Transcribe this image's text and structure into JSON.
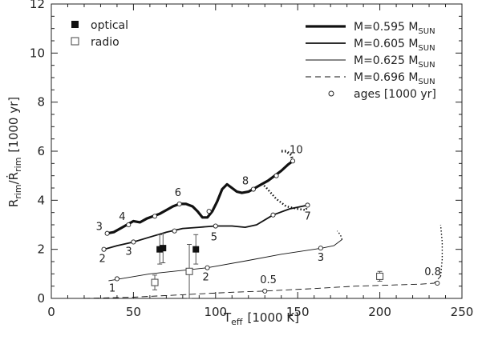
{
  "chart_data": {
    "type": "line",
    "title": "",
    "xlabel": {
      "main": "T",
      "sub": "eff",
      "unit": "[1000 K]"
    },
    "ylabel": {
      "main": "R",
      "sub": "rim",
      "sep": "/",
      "main2": "Ṙ",
      "sub2": "rim",
      "unit": "[1000 yr]"
    },
    "xlim": [
      0,
      250
    ],
    "ylim": [
      0,
      12
    ],
    "xticks": [
      0,
      50,
      100,
      150,
      200,
      250
    ],
    "yticks": [
      0,
      2,
      4,
      6,
      8,
      10,
      12
    ],
    "grid": false,
    "legend_left": [
      {
        "label": "optical",
        "marker": "filled-square"
      },
      {
        "label": "radio",
        "marker": "open-square"
      }
    ],
    "legend_right": [
      {
        "label": "M=0.595 M",
        "sub": "SUN",
        "style": "thick"
      },
      {
        "label": "M=0.605 M",
        "sub": "SUN",
        "style": "medium"
      },
      {
        "label": "M=0.625 M",
        "sub": "SUN",
        "style": "thin"
      },
      {
        "label": "M=0.696 M",
        "sub": "SUN",
        "style": "dashed"
      },
      {
        "label": "ages [1000 yr]",
        "style": "circle"
      }
    ],
    "series": [
      {
        "name": "M=0.595 M_SUN",
        "style": "thick",
        "points": [
          [
            34,
            2.65
          ],
          [
            38,
            2.7
          ],
          [
            42,
            2.85
          ],
          [
            46,
            3.0
          ],
          [
            50,
            3.15
          ],
          [
            54,
            3.1
          ],
          [
            58,
            3.25
          ],
          [
            62,
            3.35
          ],
          [
            66,
            3.45
          ],
          [
            70,
            3.6
          ],
          [
            74,
            3.75
          ],
          [
            78,
            3.85
          ],
          [
            82,
            3.85
          ],
          [
            86,
            3.75
          ],
          [
            89,
            3.55
          ],
          [
            92,
            3.3
          ],
          [
            95,
            3.3
          ],
          [
            98,
            3.55
          ],
          [
            101,
            3.95
          ],
          [
            104,
            4.45
          ],
          [
            107,
            4.65
          ],
          [
            110,
            4.5
          ],
          [
            113,
            4.35
          ],
          [
            116,
            4.3
          ],
          [
            120,
            4.35
          ],
          [
            124,
            4.5
          ],
          [
            128,
            4.65
          ],
          [
            132,
            4.8
          ],
          [
            136,
            5.0
          ],
          [
            140,
            5.2
          ],
          [
            144,
            5.45
          ],
          [
            147,
            5.6
          ]
        ],
        "dotted_tail": [
          [
            147,
            5.6
          ],
          [
            146,
            5.85
          ],
          [
            143,
            6.0
          ],
          [
            140,
            6.0
          ]
        ],
        "ages": [
          {
            "x": 34,
            "y": 2.65,
            "label": "3"
          },
          {
            "x": 47,
            "y": 3.0,
            "label": "4"
          },
          {
            "x": 63,
            "y": 3.35,
            "label": ""
          },
          {
            "x": 78,
            "y": 3.85,
            "label": "6"
          },
          {
            "x": 96,
            "y": 3.55,
            "label": ""
          },
          {
            "x": 123,
            "y": 4.45,
            "label": "8"
          },
          {
            "x": 137,
            "y": 5.0,
            "label": ""
          },
          {
            "x": 147,
            "y": 5.6,
            "label": "10"
          }
        ]
      },
      {
        "name": "M=0.605 M_SUN",
        "style": "medium",
        "points": [
          [
            32,
            2.0
          ],
          [
            40,
            2.15
          ],
          [
            50,
            2.3
          ],
          [
            60,
            2.5
          ],
          [
            70,
            2.7
          ],
          [
            80,
            2.85
          ],
          [
            90,
            2.9
          ],
          [
            100,
            2.95
          ],
          [
            110,
            2.95
          ],
          [
            118,
            2.9
          ],
          [
            125,
            3.0
          ],
          [
            135,
            3.4
          ],
          [
            145,
            3.65
          ],
          [
            156,
            3.8
          ]
        ],
        "dotted_tail": [
          [
            156,
            3.8
          ],
          [
            155,
            3.6
          ],
          [
            150,
            3.65
          ],
          [
            143,
            3.75
          ],
          [
            137,
            4.05
          ],
          [
            131,
            4.5
          ],
          [
            128,
            4.7
          ]
        ],
        "ages": [
          {
            "x": 32,
            "y": 2.0,
            "label": "2"
          },
          {
            "x": 50,
            "y": 2.3,
            "label": "3"
          },
          {
            "x": 75,
            "y": 2.75,
            "label": ""
          },
          {
            "x": 100,
            "y": 2.95,
            "label": "5"
          },
          {
            "x": 135,
            "y": 3.4,
            "label": ""
          },
          {
            "x": 156,
            "y": 3.8,
            "label": "7"
          }
        ]
      },
      {
        "name": "M=0.625 M_SUN",
        "style": "thin",
        "points": [
          [
            35,
            0.72
          ],
          [
            60,
            1.0
          ],
          [
            95,
            1.25
          ],
          [
            120,
            1.55
          ],
          [
            140,
            1.8
          ],
          [
            155,
            1.95
          ],
          [
            165,
            2.05
          ],
          [
            172,
            2.15
          ],
          [
            177,
            2.4
          ]
        ],
        "dotted_tail": [
          [
            177,
            2.4
          ],
          [
            176,
            2.6
          ],
          [
            174,
            2.75
          ]
        ],
        "ages": [
          {
            "x": 40,
            "y": 0.8,
            "label": "1"
          },
          {
            "x": 95,
            "y": 1.25,
            "label": "2"
          },
          {
            "x": 164,
            "y": 2.05,
            "label": "3"
          }
        ]
      },
      {
        "name": "M=0.696 M_SUN",
        "style": "dashed",
        "points": [
          [
            20,
            0.0
          ],
          [
            50,
            0.05
          ],
          [
            80,
            0.15
          ],
          [
            110,
            0.25
          ],
          [
            130,
            0.3
          ],
          [
            160,
            0.4
          ],
          [
            185,
            0.5
          ],
          [
            210,
            0.55
          ],
          [
            225,
            0.58
          ],
          [
            233,
            0.62
          ],
          [
            237,
            0.9
          ]
        ],
        "dotted_tail": [
          [
            237,
            0.9
          ],
          [
            238,
            1.6
          ],
          [
            238,
            2.3
          ],
          [
            237,
            3.0
          ]
        ],
        "ages": [
          {
            "x": 130,
            "y": 0.3,
            "label": "0.5"
          },
          {
            "x": 235,
            "y": 0.62,
            "label": "0.8"
          }
        ]
      }
    ],
    "optical": [
      {
        "x": 66,
        "y": 2.0,
        "err": 0.6
      },
      {
        "x": 68,
        "y": 2.05,
        "err": 0.6
      },
      {
        "x": 88,
        "y": 2.0,
        "err": 0.6
      }
    ],
    "radio": [
      {
        "x": 63,
        "y": 0.65,
        "err": 0.3
      },
      {
        "x": 84,
        "y": 1.1,
        "err": 1.1
      },
      {
        "x": 200,
        "y": 0.9,
        "err": 0.2
      }
    ]
  }
}
